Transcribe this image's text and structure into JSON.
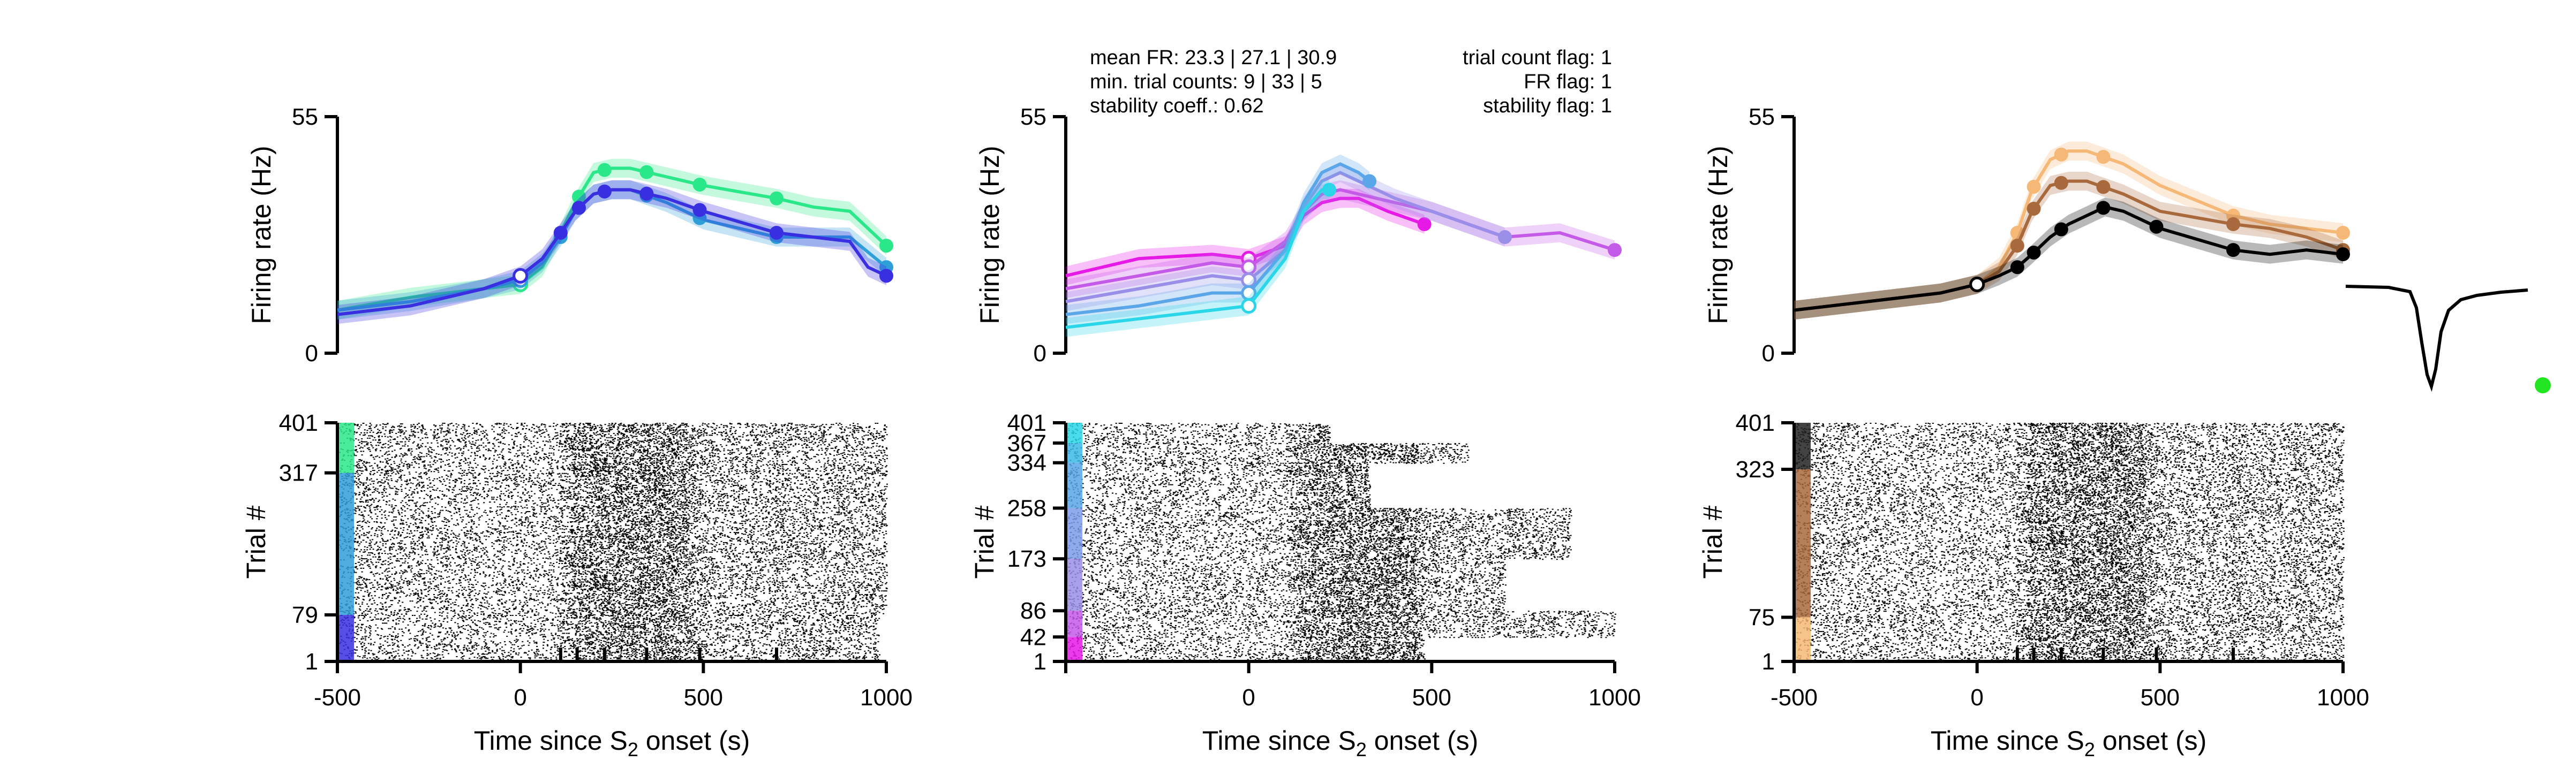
{
  "colors": {
    "axis": "#000000",
    "spike": "#000000",
    "waveform": "#000000",
    "unit_marker": "#22e622"
  },
  "x_ticks": [
    "-500",
    "0",
    "500",
    "1000"
  ],
  "xlabel": {
    "main": "Time since S",
    "sub": "2",
    "end": " onset (s)"
  },
  "fr_ylabel": "Firing rate (Hz)",
  "fr_yticks": [
    "0",
    "55"
  ],
  "raster_ylabel": "Trial #",
  "info": {
    "left_lines": [
      "mean FR: 23.3 | 27.1 | 30.9",
      "min. trial counts: 9 | 33 | 5",
      "stability coeff.: 0.62"
    ],
    "right_lines": [
      "trial count flag: 1",
      "FR flag: 1",
      "stability flag: 1"
    ]
  },
  "chart_data": [
    {
      "type": "line",
      "panel": "left firing rate",
      "xlim": [
        -500,
        1000
      ],
      "ylim": [
        0,
        55
      ],
      "event_ticks": [
        110,
        155,
        230,
        345,
        490,
        700
      ],
      "series": [
        {
          "color": "#2ae88a",
          "values": [
            [
              -500,
              10
            ],
            [
              -300,
              13
            ],
            [
              -100,
              15
            ],
            [
              0,
              16
            ],
            [
              60,
              20
            ],
            [
              110,
              28
            ],
            [
              150,
              35
            ],
            [
              200,
              42
            ],
            [
              250,
              43
            ],
            [
              300,
              43
            ],
            [
              400,
              41
            ],
            [
              500,
              39
            ],
            [
              700,
              36
            ],
            [
              800,
              34
            ],
            [
              900,
              33
            ],
            [
              1000,
              25
            ]
          ],
          "markers_x": [
            0,
            110,
            160,
            230,
            345,
            490,
            700,
            1000
          ]
        },
        {
          "color": "#2f9fd8",
          "values": [
            [
              -500,
              10
            ],
            [
              -300,
              12
            ],
            [
              -100,
              15
            ],
            [
              0,
              17
            ],
            [
              60,
              21
            ],
            [
              110,
              27
            ],
            [
              150,
              33
            ],
            [
              200,
              37
            ],
            [
              250,
              38
            ],
            [
              300,
              38
            ],
            [
              400,
              35
            ],
            [
              500,
              31
            ],
            [
              700,
              27
            ],
            [
              800,
              27
            ],
            [
              900,
              27
            ],
            [
              1000,
              20
            ]
          ],
          "markers_x": [
            0,
            110,
            160,
            230,
            345,
            490,
            700,
            1000
          ]
        },
        {
          "color": "#3a2fe0",
          "values": [
            [
              -500,
              9
            ],
            [
              -300,
              11
            ],
            [
              -100,
              15
            ],
            [
              0,
              18
            ],
            [
              60,
              22
            ],
            [
              110,
              28
            ],
            [
              150,
              33
            ],
            [
              200,
              37
            ],
            [
              250,
              38
            ],
            [
              300,
              38
            ],
            [
              400,
              36
            ],
            [
              500,
              33
            ],
            [
              700,
              28
            ],
            [
              800,
              27
            ],
            [
              900,
              26
            ],
            [
              950,
              20
            ],
            [
              1000,
              18
            ]
          ],
          "markers_x": [
            0,
            110,
            160,
            230,
            345,
            490,
            700,
            1000
          ]
        }
      ],
      "event_marker_open_x": 0
    },
    {
      "type": "line",
      "panel": "middle firing rate",
      "xlim": [
        -500,
        1000
      ],
      "ylim": [
        0,
        55
      ],
      "series": [
        {
          "color": "#e619e6",
          "values": [
            [
              -500,
              18
            ],
            [
              -300,
              22
            ],
            [
              -100,
              23
            ],
            [
              0,
              22
            ],
            [
              100,
              25
            ],
            [
              150,
              32
            ],
            [
              200,
              35
            ],
            [
              250,
              36
            ],
            [
              300,
              36
            ],
            [
              380,
              33
            ],
            [
              480,
              30
            ]
          ],
          "end_x": 480
        },
        {
          "color": "#c45ae8",
          "values": [
            [
              -500,
              15
            ],
            [
              -300,
              18
            ],
            [
              -100,
              21
            ],
            [
              0,
              20
            ],
            [
              100,
              26
            ],
            [
              150,
              33
            ],
            [
              200,
              37
            ],
            [
              250,
              38
            ],
            [
              300,
              37
            ],
            [
              400,
              35
            ],
            [
              500,
              33
            ],
            [
              700,
              27
            ],
            [
              850,
              28
            ],
            [
              1000,
              24
            ]
          ],
          "end_x": 1000
        },
        {
          "color": "#9a8ee8",
          "values": [
            [
              -500,
              12
            ],
            [
              -300,
              15
            ],
            [
              -100,
              18
            ],
            [
              0,
              17
            ],
            [
              100,
              24
            ],
            [
              150,
              34
            ],
            [
              200,
              40
            ],
            [
              250,
              42
            ],
            [
              300,
              40
            ],
            [
              400,
              36
            ],
            [
              500,
              33
            ],
            [
              700,
              27
            ]
          ],
          "end_x": 700
        },
        {
          "color": "#5aa6e8",
          "values": [
            [
              -500,
              9
            ],
            [
              -300,
              11
            ],
            [
              -100,
              14
            ],
            [
              0,
              14
            ],
            [
              100,
              24
            ],
            [
              150,
              35
            ],
            [
              200,
              42
            ],
            [
              250,
              44
            ],
            [
              300,
              42
            ],
            [
              330,
              40
            ]
          ],
          "end_x": 330
        },
        {
          "color": "#2ad6e8",
          "values": [
            [
              -500,
              6
            ],
            [
              -300,
              8
            ],
            [
              -100,
              10
            ],
            [
              0,
              11
            ],
            [
              100,
              22
            ],
            [
              150,
              33
            ],
            [
              200,
              38
            ],
            [
              220,
              38
            ]
          ],
          "end_x": 220
        }
      ],
      "event_marker_open_x": 0
    },
    {
      "type": "line",
      "panel": "right firing rate",
      "xlim": [
        -500,
        1000
      ],
      "ylim": [
        0,
        55
      ],
      "series": [
        {
          "color": "#f5b876",
          "values": [
            [
              -500,
              10
            ],
            [
              -300,
              12
            ],
            [
              -100,
              14
            ],
            [
              0,
              16
            ],
            [
              60,
              20
            ],
            [
              110,
              28
            ],
            [
              150,
              38
            ],
            [
              200,
              45
            ],
            [
              250,
              47
            ],
            [
              300,
              47
            ],
            [
              400,
              44
            ],
            [
              500,
              39
            ],
            [
              700,
              32
            ],
            [
              800,
              30
            ],
            [
              900,
              29
            ],
            [
              1000,
              28
            ]
          ],
          "markers_x": [
            110,
            155,
            230,
            345,
            700,
            1000
          ]
        },
        {
          "color": "#a86a3c",
          "values": [
            [
              -500,
              10
            ],
            [
              -300,
              12
            ],
            [
              -100,
              14
            ],
            [
              0,
              16
            ],
            [
              60,
              19
            ],
            [
              110,
              25
            ],
            [
              150,
              33
            ],
            [
              200,
              39
            ],
            [
              250,
              40
            ],
            [
              300,
              40
            ],
            [
              400,
              37
            ],
            [
              500,
              33
            ],
            [
              700,
              30
            ],
            [
              800,
              29
            ],
            [
              900,
              27
            ],
            [
              1000,
              24
            ]
          ],
          "markers_x": [
            110,
            155,
            230,
            345,
            700,
            1000
          ]
        },
        {
          "color": "#000000",
          "values": [
            [
              -500,
              10
            ],
            [
              -300,
              12
            ],
            [
              -100,
              14
            ],
            [
              0,
              16
            ],
            [
              60,
              18
            ],
            [
              110,
              20
            ],
            [
              150,
              23
            ],
            [
              200,
              27
            ],
            [
              250,
              30
            ],
            [
              300,
              32
            ],
            [
              350,
              34
            ],
            [
              400,
              33
            ],
            [
              500,
              29
            ],
            [
              700,
              24
            ],
            [
              800,
              23
            ],
            [
              900,
              24
            ],
            [
              1000,
              23
            ]
          ],
          "markers_x": [
            110,
            155,
            230,
            345,
            490,
            700,
            1000
          ]
        }
      ],
      "event_ticks": [
        110,
        155,
        230,
        345,
        490,
        700
      ],
      "event_marker_open_x": 0
    },
    {
      "type": "scatter",
      "panel": "left raster",
      "xlim": [
        -500,
        1000
      ],
      "ytick_labels": [
        "1",
        "79",
        "317",
        "401"
      ],
      "n_trials": 401,
      "condition_bands": [
        {
          "from": 1,
          "to": 79,
          "color": "#3a2fe0"
        },
        {
          "from": 79,
          "to": 317,
          "color": "#2f9fd8"
        },
        {
          "from": 317,
          "to": 401,
          "color": "#2ae88a"
        }
      ],
      "x_end_by_band": [
        980,
        1000,
        1000
      ]
    },
    {
      "type": "scatter",
      "panel": "middle raster",
      "xlim": [
        -500,
        1000
      ],
      "ytick_labels": [
        "1",
        "42",
        "86",
        "173",
        "258",
        "334",
        "367",
        "401"
      ],
      "n_trials": 401,
      "condition_bands": [
        {
          "from": 1,
          "to": 42,
          "color": "#e619e6"
        },
        {
          "from": 42,
          "to": 86,
          "color": "#c45ae8"
        },
        {
          "from": 86,
          "to": 173,
          "color": "#9a8ee8"
        },
        {
          "from": 173,
          "to": 258,
          "color": "#7c9ce8"
        },
        {
          "from": 258,
          "to": 334,
          "color": "#5aa6e8"
        },
        {
          "from": 334,
          "to": 367,
          "color": "#3bb8e8"
        },
        {
          "from": 367,
          "to": 401,
          "color": "#2ad6e8"
        }
      ],
      "x_end_by_band": [
        480,
        1000,
        700,
        880,
        330,
        600,
        220
      ]
    },
    {
      "type": "scatter",
      "panel": "right raster",
      "xlim": [
        -500,
        1000
      ],
      "ytick_labels": [
        "1",
        "75",
        "323",
        "401"
      ],
      "n_trials": 401,
      "condition_bands": [
        {
          "from": 1,
          "to": 75,
          "color": "#f5b876"
        },
        {
          "from": 75,
          "to": 323,
          "color": "#a86a3c"
        },
        {
          "from": 323,
          "to": 401,
          "color": "#222222"
        }
      ],
      "x_end_by_band": [
        1000,
        1000,
        1000
      ]
    }
  ]
}
